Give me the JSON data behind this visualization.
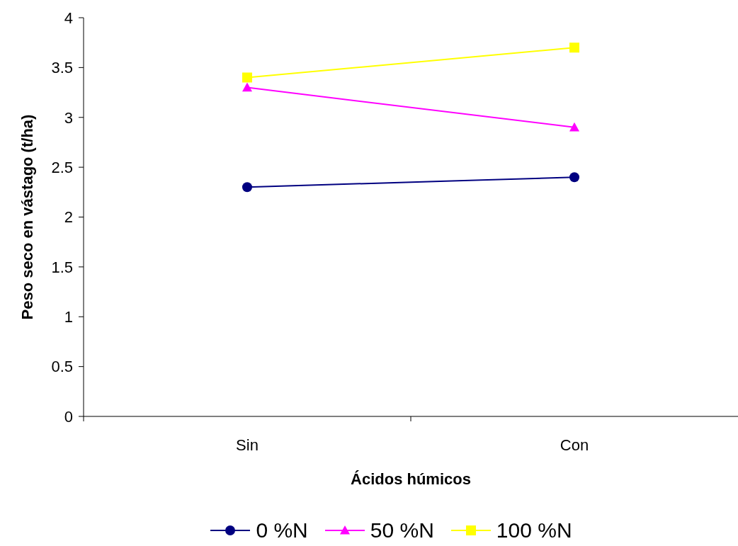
{
  "chart_data": {
    "type": "line",
    "xlabel": "Ácidos húmicos",
    "ylabel": "Peso seco en vástago (t/ha)",
    "categories": [
      "Sin",
      "Con"
    ],
    "series": [
      {
        "name": "0 %N",
        "color": "#000080",
        "marker": "circle",
        "values": [
          2.3,
          2.4
        ]
      },
      {
        "name": "50 %N",
        "color": "#ff00ff",
        "marker": "triangle",
        "values": [
          3.3,
          2.9
        ]
      },
      {
        "name": "100 %N",
        "color": "#ffff00",
        "marker": "square",
        "values": [
          3.4,
          3.7
        ]
      }
    ],
    "ylim": [
      0,
      4
    ],
    "yticks": [
      0,
      0.5,
      1,
      1.5,
      2,
      2.5,
      3,
      3.5,
      4
    ],
    "legend": "bottom",
    "line_style": "solid"
  }
}
